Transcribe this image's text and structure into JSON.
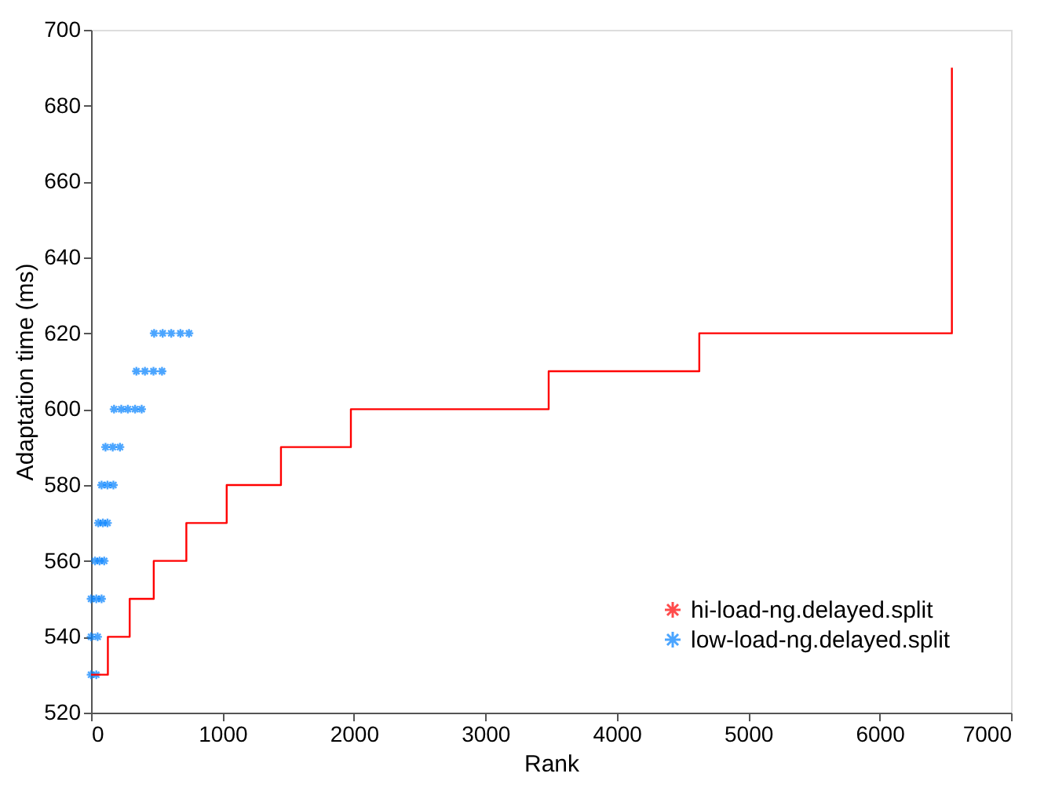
{
  "chart_data": {
    "type": "scatter",
    "xlabel": "Rank",
    "ylabel": "Adaptation time (ms)",
    "xlim": [
      0,
      7000
    ],
    "xticks": [
      0,
      1000,
      2000,
      3000,
      4000,
      5000,
      6000,
      7000
    ],
    "ylim": [
      520,
      700
    ],
    "yticks": [
      520,
      540,
      560,
      580,
      600,
      620,
      640,
      660,
      680,
      700
    ],
    "grid": false,
    "legend": "bottom right",
    "series": [
      {
        "name": "hi-load-ng.delayed.split",
        "type": "step",
        "color": "#ff0000",
        "line_style": "solid",
        "x": [
          0,
          128,
          294,
          477,
          725,
          1032,
          1445,
          1977,
          3482,
          4628,
          6550
        ],
        "values": [
          530,
          540,
          550,
          560,
          570,
          580,
          590,
          600,
          610,
          620,
          690
        ]
      },
      {
        "name": "low-load-ng.delayed.split",
        "type": "scatter",
        "color": "#0080ff",
        "marker": "cross",
        "x": [
          0,
          40,
          0,
          50,
          0,
          40,
          80,
          30,
          65,
          100,
          55,
          90,
          125,
          80,
          125,
          170,
          110,
          165,
          220,
          175,
          230,
          280,
          335,
          385,
          345,
          410,
          475,
          540,
          480,
          545,
          610,
          680,
          745
        ],
        "values": [
          530,
          530,
          540,
          540,
          550,
          550,
          550,
          560,
          560,
          560,
          570,
          570,
          570,
          580,
          580,
          580,
          590,
          590,
          590,
          600,
          600,
          600,
          600,
          600,
          610,
          610,
          610,
          610,
          620,
          620,
          620,
          620,
          620
        ]
      }
    ]
  }
}
